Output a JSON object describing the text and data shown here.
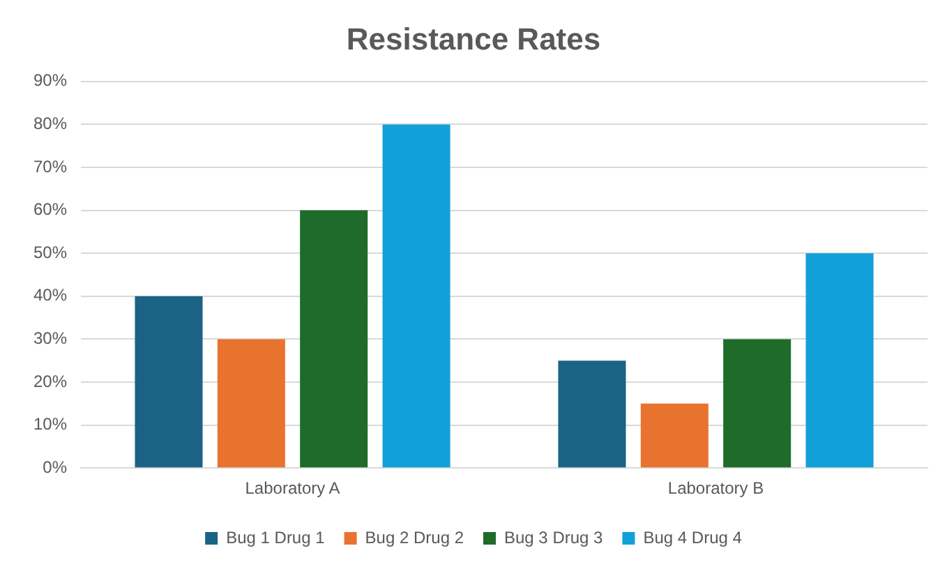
{
  "chart_data": {
    "type": "bar",
    "title": "Resistance Rates",
    "categories": [
      "Laboratory A",
      "Laboratory B"
    ],
    "series": [
      {
        "name": "Bug 1 Drug 1",
        "color": "#1b6385",
        "values": [
          40,
          25
        ]
      },
      {
        "name": "Bug 2 Drug 2",
        "color": "#e8732f",
        "values": [
          30,
          15
        ]
      },
      {
        "name": "Bug 3 Drug 3",
        "color": "#1f6b2a",
        "values": [
          60,
          30
        ]
      },
      {
        "name": "Bug 4 Drug 4",
        "color": "#12a0d9",
        "values": [
          80,
          50
        ]
      }
    ],
    "ylim": [
      0,
      90
    ],
    "yticks": [
      {
        "value": 0,
        "label": "0%"
      },
      {
        "value": 10,
        "label": "10%"
      },
      {
        "value": 20,
        "label": "20%"
      },
      {
        "value": 30,
        "label": "30%"
      },
      {
        "value": 40,
        "label": "40%"
      },
      {
        "value": 50,
        "label": "50%"
      },
      {
        "value": 60,
        "label": "60%"
      },
      {
        "value": 70,
        "label": "70%"
      },
      {
        "value": 80,
        "label": "80%"
      },
      {
        "value": 90,
        "label": "90%"
      }
    ],
    "grid": "y",
    "legend": "bottom"
  }
}
